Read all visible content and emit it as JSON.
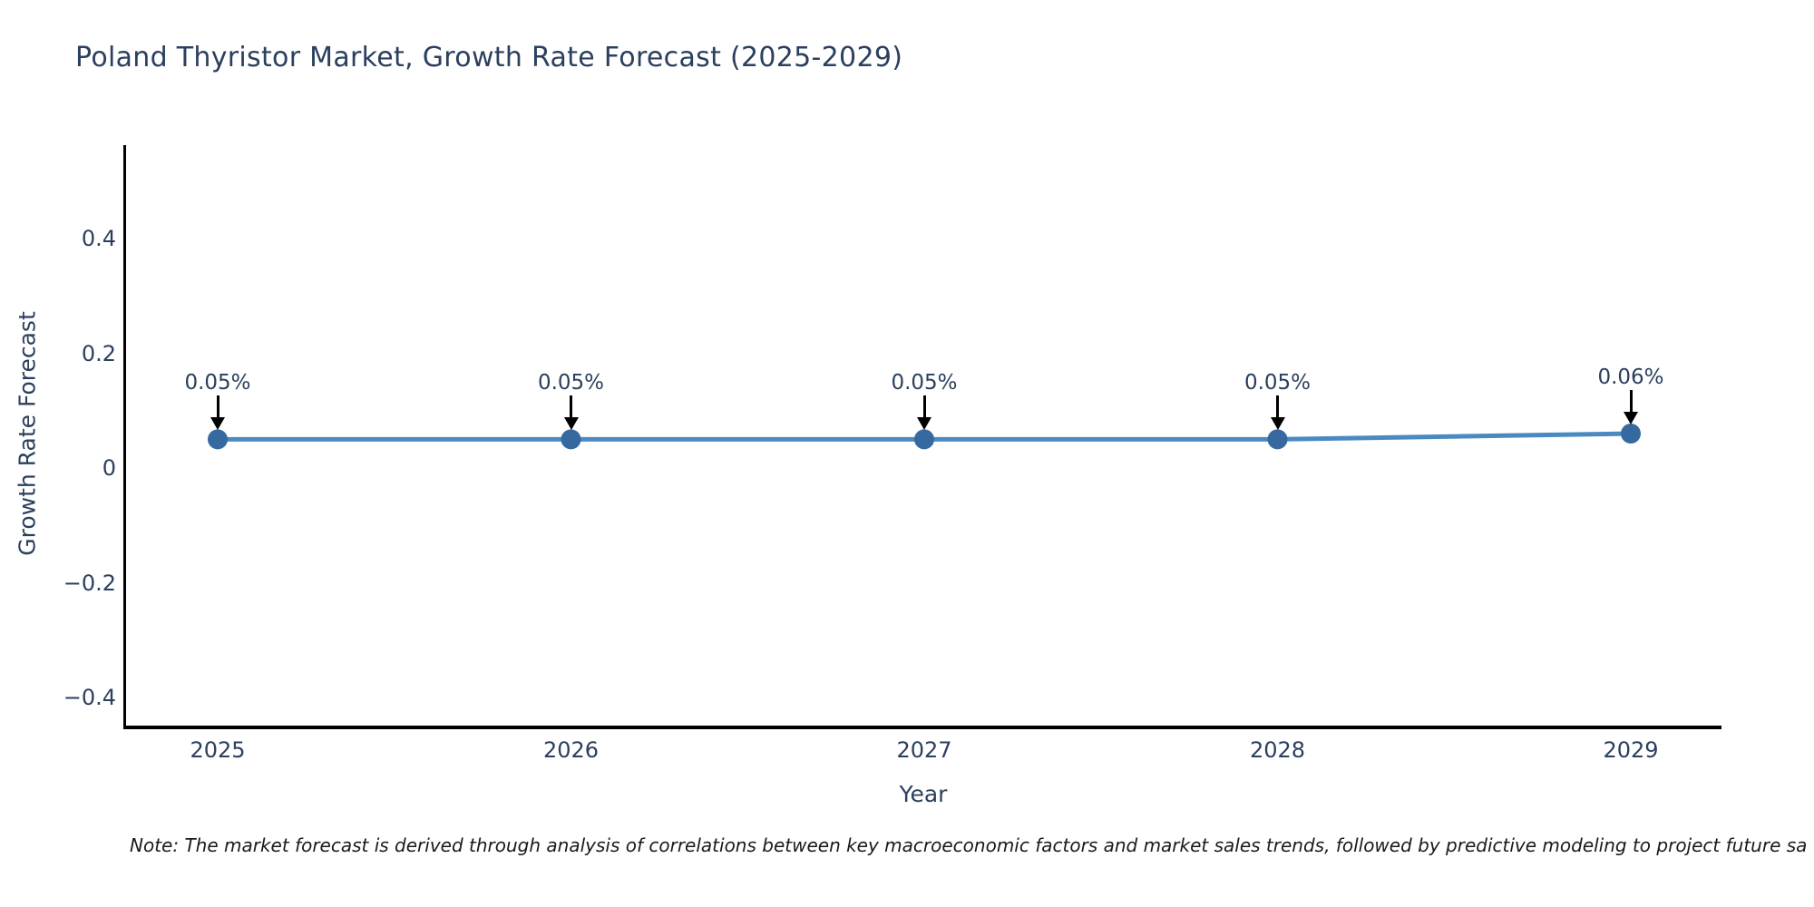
{
  "page": {
    "background": "#ffffff"
  },
  "note": "Note: The market forecast is derived through analysis of correlations between key macroeconomic factors and market sales trends, followed by predictive modeling to project future sa",
  "chart_data": {
    "type": "line",
    "title": "Poland Thyristor Market, Growth Rate Forecast (2025-2029)",
    "xlabel": "Year",
    "ylabel": "Growth Rate Forecast",
    "x": [
      2025,
      2026,
      2027,
      2028,
      2029
    ],
    "xtick_labels": [
      "2025",
      "2026",
      "2027",
      "2028",
      "2029"
    ],
    "series": [
      {
        "name": "Growth Rate Forecast",
        "values": [
          0.05,
          0.05,
          0.05,
          0.05,
          0.06
        ]
      }
    ],
    "point_labels": [
      "0.05%",
      "0.05%",
      "0.05%",
      "0.05%",
      "0.06%"
    ],
    "yticks": [
      {
        "label": "0.4",
        "value": 0.4
      },
      {
        "label": "0.2",
        "value": 0.2
      },
      {
        "label": "0",
        "value": 0
      },
      {
        "label": "−0.2",
        "value": -0.2
      },
      {
        "label": "−0.4",
        "value": -0.4
      }
    ],
    "ylim": [
      -0.45,
      0.56
    ],
    "grid": false,
    "legend": false,
    "colors": {
      "line": "#4a8ac0",
      "marker": "#35699f",
      "text": "#2b3f5e",
      "axis": "#000000",
      "arrow": "#000000",
      "note": "#1a1a1a"
    }
  }
}
